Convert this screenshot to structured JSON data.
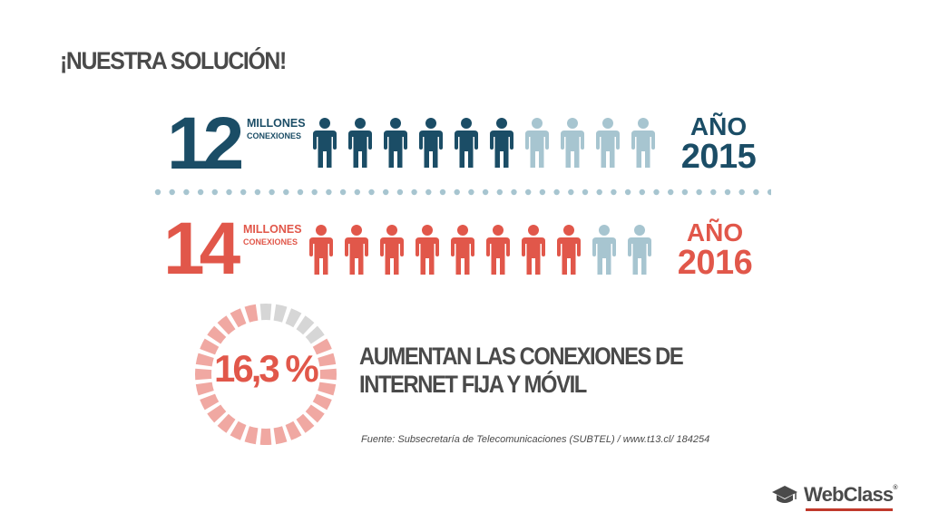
{
  "title": "¡NUESTRA SOLUCIÓN!",
  "rows": [
    {
      "number": "12",
      "unit_line1": "MILLONES",
      "unit_line2": "CONEXIONES",
      "year_label": "AÑO",
      "year": "2015",
      "filled_icons": 6,
      "total_icons": 10,
      "color": "#1b4d66",
      "empty_color": "#a7c5d0"
    },
    {
      "number": "14",
      "unit_line1": "MILLONES",
      "unit_line2": "CONEXIONES",
      "year_label": "AÑO",
      "year": "2016",
      "filled_icons": 8,
      "total_icons": 10,
      "color": "#e1574a",
      "empty_color": "#a7c5d0"
    }
  ],
  "gauge": {
    "value_text": "16,3 %",
    "segments_total": 28,
    "segments_gray": 5,
    "color": "#f0a8a2",
    "gray_color": "#d6d6d6",
    "text_color": "#e1574a"
  },
  "statement_line1": "AUMENTAN LAS CONEXIONES DE",
  "statement_line2": "INTERNET FIJA Y MÓVIL",
  "source": "Fuente: Subsecretaría de Telecomunicaciones (SUBTEL) / www.t13.cl/ 184254",
  "logo": {
    "text": "WebClass",
    "reg": "®",
    "accent": "#c0392b"
  },
  "colors": {
    "dark_blue": "#1b4d66",
    "red": "#e1574a",
    "light_blue": "#a7c5d0",
    "gray_text": "#4a4a4a"
  }
}
